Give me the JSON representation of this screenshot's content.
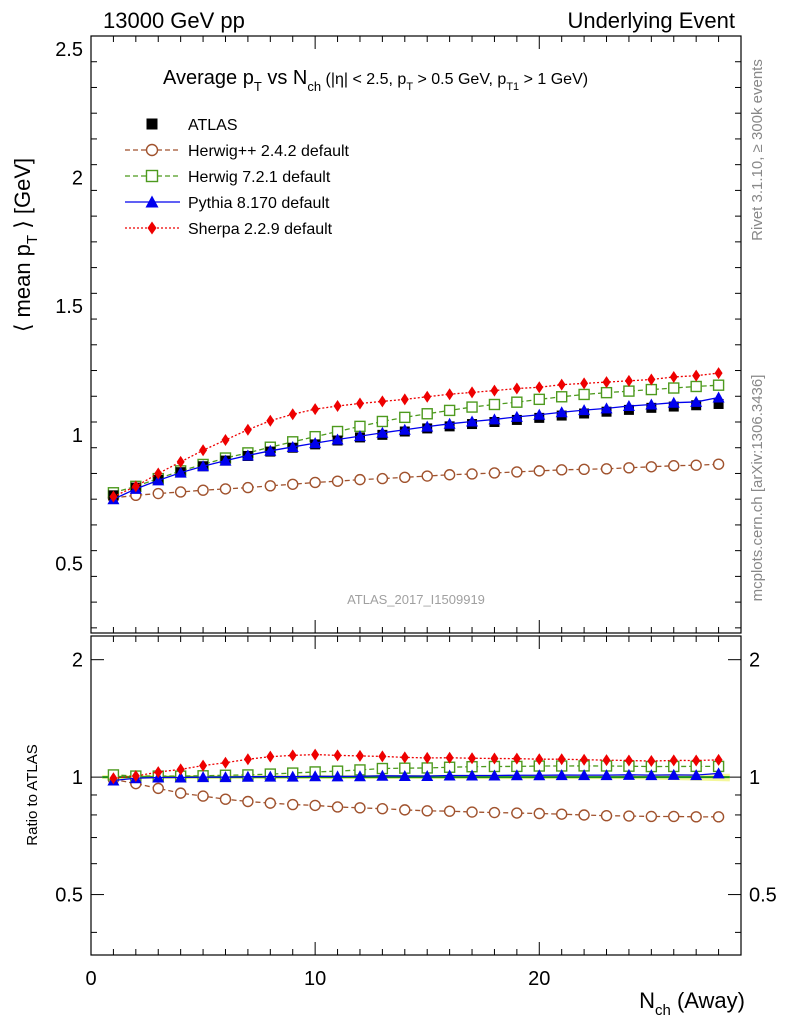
{
  "header": {
    "left": "13000 GeV pp",
    "right": "Underlying Event"
  },
  "side": {
    "rivet": "Rivet 3.1.10, ≥ 300k events",
    "mcplots": "mcplots.cern.ch [arXiv:1306.3436]"
  },
  "chart_data": {
    "type": "line",
    "title": "Average p_T vs N_ch (|η| < 2.5, p_T > 0.5 GeV, p_T1 > 1 GeV)",
    "analysis_id": "ATLAS_2017_I1509919",
    "xlabel": "N_ch (Away)",
    "ylabel": "⟨ mean p_T ⟩ [GeV]",
    "ratio_ylabel": "Ratio to ATLAS",
    "xlim": [
      0,
      29
    ],
    "ylim": [
      0.23,
      2.55
    ],
    "ratio_ylim": [
      0.35,
      2.3
    ],
    "x_ticks": [
      0,
      10,
      20
    ],
    "y_ticks": [
      0.5,
      1,
      1.5,
      2,
      2.5
    ],
    "ratio_y_ticks": [
      0.5,
      1,
      2
    ],
    "legend_position": "top-left",
    "x": [
      1,
      2,
      3,
      4,
      5,
      6,
      7,
      8,
      9,
      10,
      11,
      12,
      13,
      14,
      15,
      16,
      17,
      18,
      19,
      20,
      21,
      22,
      23,
      24,
      25,
      26,
      27,
      28
    ],
    "series": [
      {
        "name": "ATLAS",
        "color": "#000000",
        "marker": "square",
        "line": "none",
        "values": [
          0.765,
          0.795,
          0.825,
          0.855,
          0.878,
          0.9,
          0.918,
          0.935,
          0.95,
          0.963,
          0.978,
          0.99,
          1.0,
          1.013,
          1.025,
          1.033,
          1.042,
          1.05,
          1.058,
          1.066,
          1.075,
          1.083,
          1.09,
          1.097,
          1.105,
          1.11,
          1.115,
          1.12
        ]
      },
      {
        "name": "Herwig++ 2.4.2 default",
        "color": "#a0522d",
        "marker": "open-circle",
        "line": "dashed",
        "values": [
          0.755,
          0.765,
          0.772,
          0.778,
          0.785,
          0.79,
          0.795,
          0.802,
          0.808,
          0.815,
          0.82,
          0.826,
          0.83,
          0.835,
          0.84,
          0.845,
          0.848,
          0.852,
          0.856,
          0.86,
          0.864,
          0.866,
          0.868,
          0.872,
          0.876,
          0.88,
          0.882,
          0.886
        ]
      },
      {
        "name": "Herwig 7.2.1 default",
        "color": "#4d9a1e",
        "marker": "open-square",
        "line": "dashed",
        "values": [
          0.775,
          0.8,
          0.83,
          0.86,
          0.885,
          0.91,
          0.93,
          0.952,
          0.973,
          0.993,
          1.013,
          1.033,
          1.052,
          1.068,
          1.082,
          1.095,
          1.108,
          1.118,
          1.127,
          1.138,
          1.148,
          1.157,
          1.164,
          1.17,
          1.176,
          1.182,
          1.188,
          1.193
        ]
      },
      {
        "name": "Pythia 8.170 default",
        "color": "#0000ee",
        "marker": "triangle",
        "line": "solid",
        "values": [
          0.75,
          0.79,
          0.823,
          0.853,
          0.878,
          0.9,
          0.92,
          0.938,
          0.953,
          0.968,
          0.982,
          0.995,
          1.008,
          1.02,
          1.032,
          1.043,
          1.052,
          1.06,
          1.07,
          1.078,
          1.088,
          1.096,
          1.103,
          1.112,
          1.118,
          1.125,
          1.128,
          1.145
        ]
      },
      {
        "name": "Sherpa 2.2.9 default",
        "color": "#ee0000",
        "marker": "diamond",
        "line": "dotted",
        "values": [
          0.76,
          0.8,
          0.85,
          0.895,
          0.94,
          0.98,
          1.02,
          1.055,
          1.08,
          1.1,
          1.112,
          1.122,
          1.13,
          1.138,
          1.148,
          1.158,
          1.165,
          1.172,
          1.18,
          1.185,
          1.195,
          1.2,
          1.205,
          1.21,
          1.215,
          1.225,
          1.23,
          1.24
        ]
      }
    ]
  }
}
